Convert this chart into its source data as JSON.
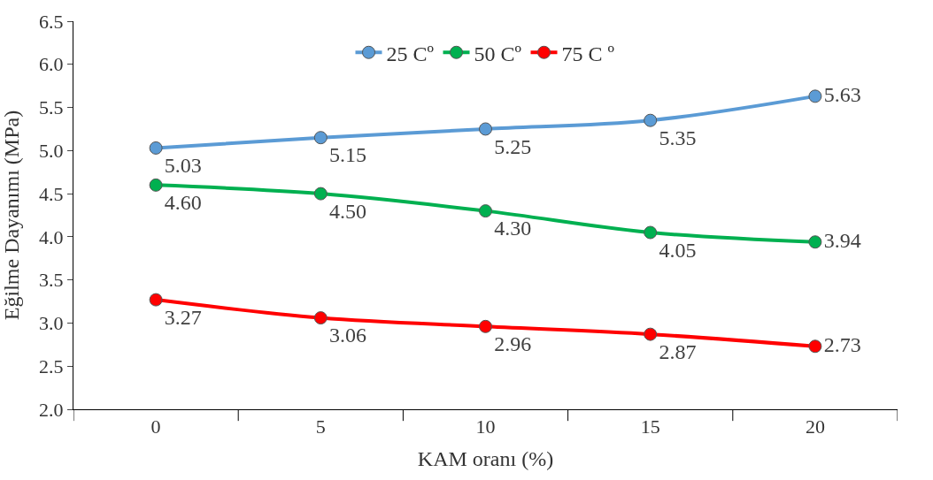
{
  "chart_data": {
    "type": "line",
    "xlabel": "KAM oranı (%)",
    "ylabel": "Eğilme Dayanımı (MPa)",
    "categories": [
      "0",
      "5",
      "10",
      "15",
      "20"
    ],
    "series": [
      {
        "name": "25 Cº",
        "color": "#5b9bd5",
        "values": [
          5.03,
          5.15,
          5.25,
          5.35,
          5.63
        ],
        "value_labels": [
          "5.03",
          "5.15",
          "5.25",
          "5.35",
          "5.63"
        ]
      },
      {
        "name": "50 Cº",
        "color": "#00b050",
        "values": [
          4.6,
          4.5,
          4.3,
          4.05,
          3.94
        ],
        "value_labels": [
          "4.60",
          "4.50",
          "4.30",
          "4.05",
          "3.94"
        ]
      },
      {
        "name": "75 C º",
        "color": "#ff0000",
        "values": [
          3.27,
          3.06,
          2.96,
          2.87,
          2.73
        ],
        "value_labels": [
          "3.27",
          "3.06",
          "2.96",
          "2.87",
          "2.73"
        ]
      }
    ],
    "ylim": [
      2.0,
      6.5
    ],
    "yticks": [
      {
        "value": 2.0,
        "label": "2.0"
      },
      {
        "value": 2.5,
        "label": "2.5"
      },
      {
        "value": 3.0,
        "label": "3.0"
      },
      {
        "value": 3.5,
        "label": "3.5"
      },
      {
        "value": 4.0,
        "label": "4.0"
      },
      {
        "value": 4.5,
        "label": "4.5"
      },
      {
        "value": 5.0,
        "label": "5.0"
      },
      {
        "value": 5.5,
        "label": "5.5"
      },
      {
        "value": 6.0,
        "label": "6.0"
      },
      {
        "value": 6.5,
        "label": "6.5"
      }
    ],
    "legend": "top",
    "marker": "circle",
    "line_style": "solid"
  }
}
